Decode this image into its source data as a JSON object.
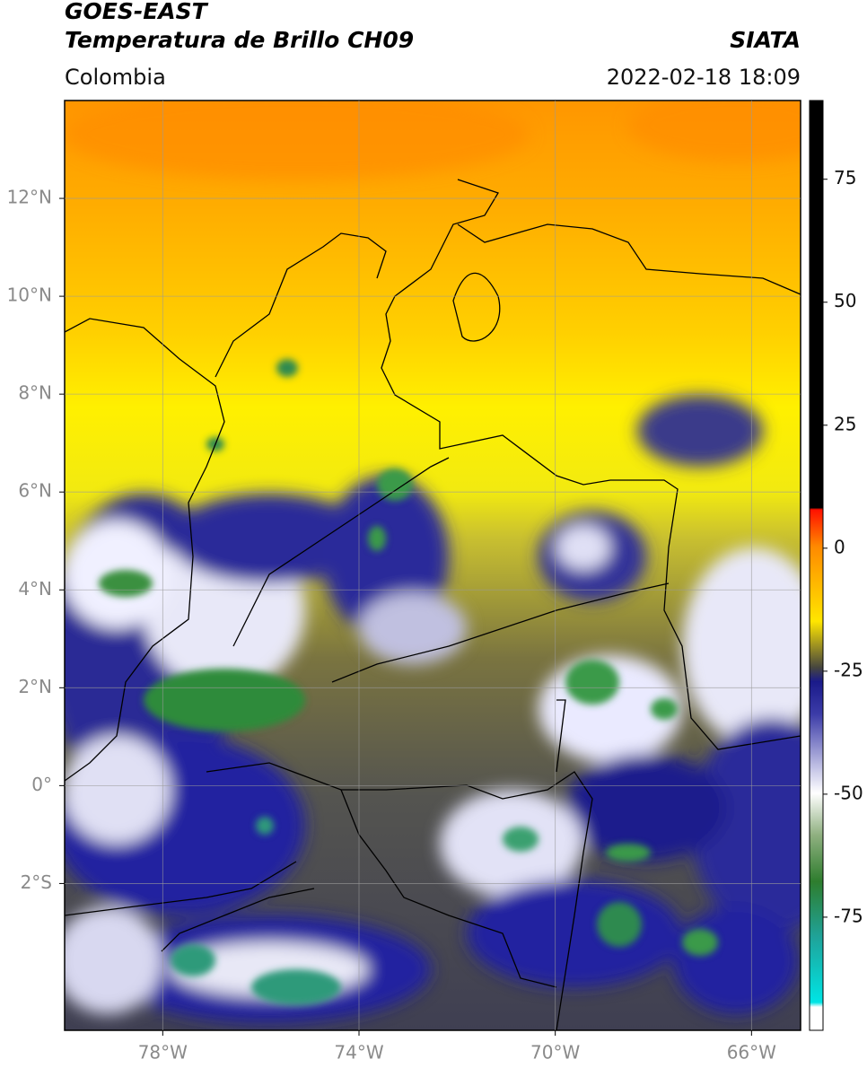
{
  "header": {
    "title": "GOES-EAST",
    "subtitle": "Temperatura de Brillo CH09",
    "region": "Colombia",
    "source": "SIATA",
    "datetime": "2022-02-18 18:09"
  },
  "map": {
    "xlim": [
      -80,
      -65
    ],
    "ylim": [
      -5,
      14
    ],
    "grid": true,
    "xticks": [
      {
        "value": -78,
        "label": "78°W"
      },
      {
        "value": -74,
        "label": "74°W"
      },
      {
        "value": -70,
        "label": "70°W"
      },
      {
        "value": -66,
        "label": "66°W"
      }
    ],
    "yticks": [
      {
        "value": 12,
        "label": "12°N"
      },
      {
        "value": 10,
        "label": "10°N"
      },
      {
        "value": 8,
        "label": "8°N"
      },
      {
        "value": 6,
        "label": "6°N"
      },
      {
        "value": 4,
        "label": "4°N"
      },
      {
        "value": 2,
        "label": "2°N"
      },
      {
        "value": 0,
        "label": "0°"
      },
      {
        "value": -2,
        "label": "2°S"
      }
    ]
  },
  "colorbar": {
    "lim": [
      -98,
      91
    ],
    "ticks": [
      75,
      50,
      25,
      0,
      -25,
      -50,
      -75
    ]
  }
}
